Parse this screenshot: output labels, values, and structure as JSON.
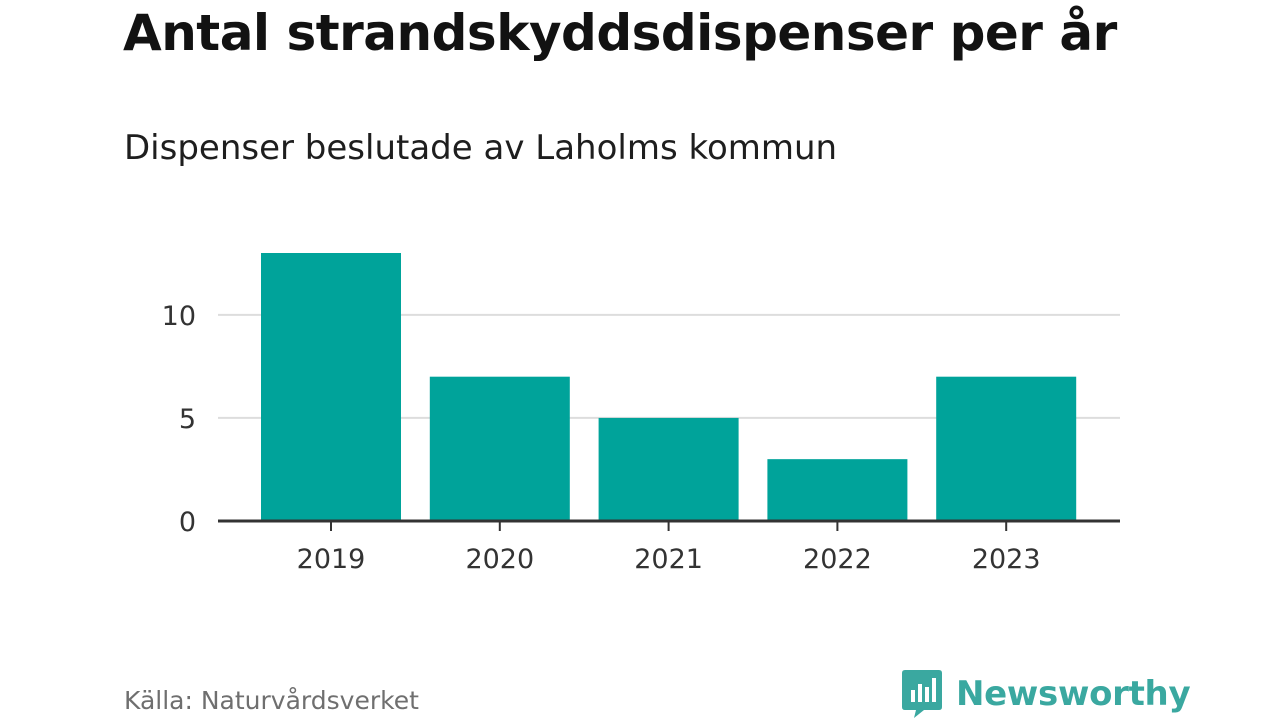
{
  "header": {
    "title": "Antal strandskyddsdispenser per år",
    "subtitle": "Dispenser beslutade av Laholms kommun"
  },
  "footer": {
    "source": "Källa: Naturvårdsverket",
    "brand": "Newsworthy",
    "brand_icon": "newsworthy-logo-icon"
  },
  "colors": {
    "bar": "#00a39a",
    "grid": "#dddddd",
    "axis": "#333333",
    "brand": "#3aa8a0"
  },
  "chart_data": {
    "type": "bar",
    "title": "Antal strandskyddsdispenser per år",
    "subtitle": "Dispenser beslutade av Laholms kommun",
    "categories": [
      "2019",
      "2020",
      "2021",
      "2022",
      "2023"
    ],
    "values": [
      13,
      7,
      5,
      3,
      7
    ],
    "xlabel": "",
    "ylabel": "",
    "ylim": [
      0,
      13
    ],
    "yticks": [
      0,
      5,
      10
    ],
    "ytick_labels": [
      "0",
      "5",
      "10"
    ],
    "grid": true,
    "legend": "none"
  }
}
